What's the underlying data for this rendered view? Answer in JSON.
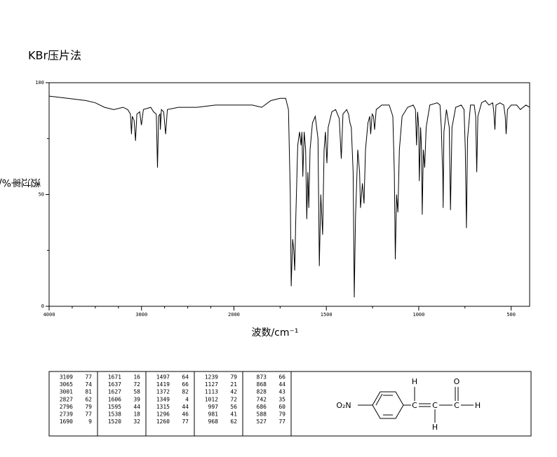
{
  "header": {
    "title": "KBr压片法"
  },
  "chart_data": {
    "type": "line",
    "ylabel": "透过率%/",
    "xlabel": "波数/cm⁻¹",
    "xlim": [
      4000,
      400
    ],
    "x_break": 2000,
    "x_scale_ratio": 2,
    "xticks": [
      4000,
      3000,
      2000,
      1500,
      1000,
      500
    ],
    "xminor_ticks": [
      3750,
      3500,
      3250,
      2750,
      2500,
      2250,
      1750,
      1250,
      750
    ],
    "ylim": [
      0,
      100
    ],
    "yticks": [
      0,
      50,
      100
    ],
    "yminor_ticks": [
      25,
      75
    ],
    "color": "#000000",
    "x": [
      4000,
      3800,
      3600,
      3500,
      3400,
      3300,
      3200,
      3150,
      3120,
      3109,
      3100,
      3080,
      3065,
      3050,
      3020,
      3001,
      2980,
      2900,
      2870,
      2840,
      2827,
      2815,
      2800,
      2796,
      2785,
      2760,
      2739,
      2720,
      2600,
      2400,
      2200,
      2100,
      2000,
      1900,
      1850,
      1800,
      1750,
      1720,
      1705,
      1695,
      1690,
      1682,
      1676,
      1671,
      1665,
      1655,
      1645,
      1637,
      1632,
      1627,
      1620,
      1612,
      1606,
      1600,
      1595,
      1588,
      1575,
      1560,
      1545,
      1538,
      1530,
      1520,
      1512,
      1505,
      1497,
      1490,
      1470,
      1450,
      1430,
      1419,
      1410,
      1390,
      1380,
      1372,
      1365,
      1355,
      1349,
      1342,
      1330,
      1320,
      1315,
      1305,
      1296,
      1288,
      1275,
      1265,
      1260,
      1252,
      1245,
      1239,
      1230,
      1200,
      1160,
      1140,
      1132,
      1127,
      1120,
      1113,
      1105,
      1090,
      1060,
      1030,
      1018,
      1012,
      1006,
      1000,
      997,
      990,
      985,
      981,
      975,
      968,
      960,
      940,
      900,
      885,
      878,
      873,
      870,
      868,
      864,
      850,
      835,
      828,
      820,
      800,
      770,
      755,
      748,
      742,
      736,
      720,
      700,
      692,
      686,
      680,
      660,
      640,
      620,
      600,
      594,
      588,
      582,
      560,
      540,
      532,
      527,
      520,
      500,
      470,
      450,
      420,
      400
    ],
    "values": [
      94,
      93,
      92,
      91,
      89,
      88,
      89,
      88,
      86,
      77,
      85,
      83,
      74,
      86,
      87,
      81,
      88,
      89,
      87,
      86,
      62,
      85,
      86,
      79,
      88,
      87,
      77,
      88,
      89,
      89,
      90,
      90,
      90,
      90,
      89,
      92,
      93,
      93,
      88,
      50,
      9,
      30,
      25,
      16,
      40,
      72,
      78,
      72,
      78,
      58,
      78,
      70,
      39,
      60,
      44,
      70,
      82,
      85,
      75,
      18,
      50,
      32,
      70,
      78,
      64,
      80,
      87,
      88,
      84,
      66,
      86,
      88,
      86,
      82,
      80,
      60,
      4,
      40,
      70,
      60,
      44,
      55,
      46,
      70,
      82,
      85,
      77,
      86,
      85,
      79,
      88,
      90,
      90,
      85,
      60,
      21,
      50,
      42,
      70,
      85,
      89,
      90,
      88,
      72,
      87,
      80,
      56,
      80,
      70,
      41,
      70,
      62,
      80,
      90,
      91,
      90,
      80,
      66,
      60,
      44,
      78,
      88,
      80,
      43,
      80,
      89,
      90,
      88,
      70,
      35,
      75,
      90,
      90,
      85,
      60,
      85,
      91,
      92,
      90,
      91,
      87,
      79,
      90,
      91,
      90,
      85,
      77,
      88,
      90,
      90,
      88,
      90,
      89
    ]
  },
  "peak_table": {
    "wavenumbers": [
      3109,
      3065,
      3001,
      2827,
      2796,
      2739,
      1690,
      1671,
      1637,
      1627,
      1606,
      1595,
      1538,
      1520,
      1497,
      1419,
      1372,
      1349,
      1315,
      1296,
      1260,
      1239,
      1127,
      1113,
      1012,
      997,
      981,
      968,
      873,
      868,
      828,
      742,
      686,
      588,
      527
    ],
    "transmittance": [
      77,
      74,
      81,
      62,
      79,
      77,
      9,
      16,
      72,
      58,
      39,
      44,
      18,
      32,
      64,
      66,
      82,
      4,
      44,
      46,
      77,
      79,
      21,
      42,
      72,
      56,
      41,
      62,
      66,
      44,
      43,
      35,
      60,
      79,
      77
    ]
  },
  "structure": {
    "labels": [
      "O₂N",
      "H",
      "C",
      "C",
      "C",
      "O",
      "H",
      "H"
    ]
  }
}
